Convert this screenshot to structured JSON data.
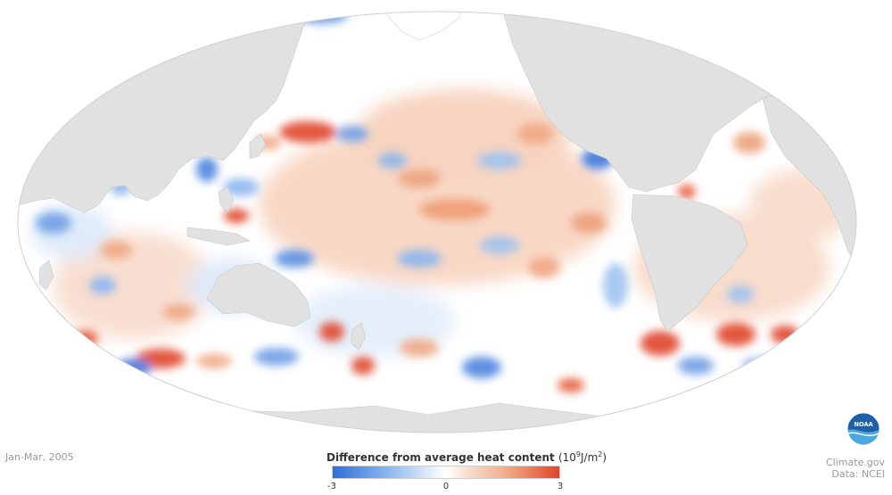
{
  "date_label": "Jan-Mar, 2005",
  "credits": {
    "line1": "Climate.gov",
    "line2": "Data: NCEI"
  },
  "logo": {
    "icon": "noaa-logo-icon",
    "text": "NOAA"
  },
  "legend": {
    "title": "Difference from average heat content",
    "unit_base": "(10",
    "unit_exp": "9",
    "unit_mid": "J/m",
    "unit_sq": "2",
    "unit_end": ")",
    "min_label": "-3",
    "mid_label": "0",
    "max_label": "3",
    "colors": {
      "negative": "#2f6fd7",
      "neutral": "#ffffff",
      "positive": "#e0442a"
    }
  },
  "map": {
    "projection": "mollweide",
    "ocean_neutral_color": "#ffffff",
    "land_color": "#e1e1e1",
    "coast_color": "#c8c8c8"
  }
}
